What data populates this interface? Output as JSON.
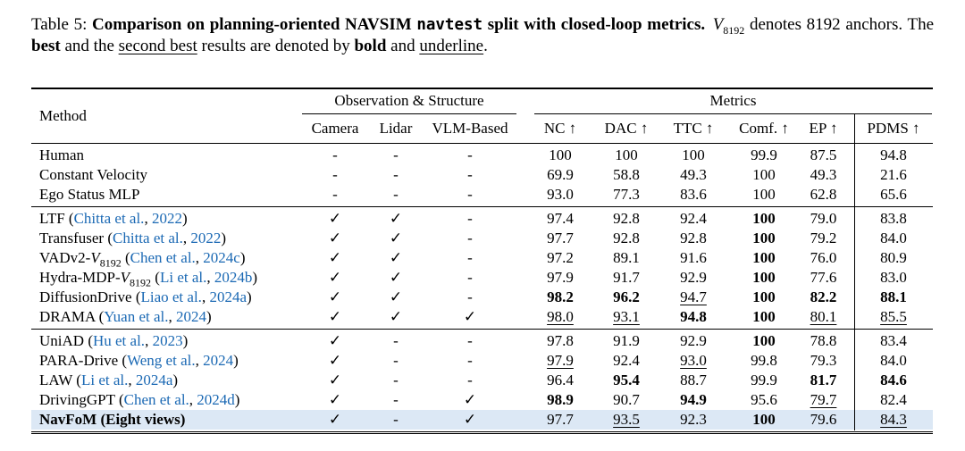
{
  "caption": {
    "label": "Table 5: ",
    "bold1": "Comparison on planning-oriented NAVSIM ",
    "mono": "navtest",
    "bold2": " split with closed-loop metrics.",
    "script_v": "V",
    "v_sub": "8192",
    "text2a": " denotes 8192 anchors. The ",
    "best_word": "best",
    "text2b": " and the ",
    "second_best_word": "second best",
    "text2c": " results are denoted by ",
    "bold_word": "bold",
    "text2d": " and ",
    "underline_word": "underline",
    "period": "."
  },
  "table": {
    "script_v": "V",
    "header": {
      "method": "Method",
      "obs_group": "Observation & Structure",
      "metrics_group": "Metrics",
      "cols": [
        "Camera",
        "Lidar",
        "VLM-Based"
      ],
      "metric_cols": [
        "NC ↑",
        "DAC ↑",
        "TTC ↑",
        "Comf. ↑",
        "EP ↑",
        "PDMS ↑"
      ]
    },
    "legend": {
      "check": "✓",
      "dash": "-"
    },
    "accent_colors": {
      "citation_blue": "#1b69b4",
      "highlight_row": "#dce8f5"
    },
    "groups": [
      {
        "rows": [
          {
            "pre": "Human",
            "flags": [
              "-",
              "-",
              "-"
            ],
            "m": [
              [
                "100",
                ""
              ],
              [
                "100",
                ""
              ],
              [
                "100",
                ""
              ],
              [
                "99.9",
                ""
              ],
              [
                "87.5",
                ""
              ],
              [
                "94.8",
                ""
              ]
            ]
          },
          {
            "pre": "Constant Velocity",
            "flags": [
              "-",
              "-",
              "-"
            ],
            "m": [
              [
                "69.9",
                ""
              ],
              [
                "58.8",
                ""
              ],
              [
                "49.3",
                ""
              ],
              [
                "100",
                ""
              ],
              [
                "49.3",
                ""
              ],
              [
                "21.6",
                ""
              ]
            ]
          },
          {
            "pre": "Ego Status MLP",
            "flags": [
              "-",
              "-",
              "-"
            ],
            "m": [
              [
                "93.0",
                ""
              ],
              [
                "77.3",
                ""
              ],
              [
                "83.6",
                ""
              ],
              [
                "100",
                ""
              ],
              [
                "62.8",
                ""
              ],
              [
                "65.6",
                ""
              ]
            ]
          }
        ]
      },
      {
        "rows": [
          {
            "pre": "LTF",
            "cite": {
              "a": "Chitta et al.",
              "y": "2022"
            },
            "flags": [
              "✓",
              "✓",
              "-"
            ],
            "m": [
              [
                "97.4",
                ""
              ],
              [
                "92.8",
                ""
              ],
              [
                "92.4",
                ""
              ],
              [
                "100",
                "b"
              ],
              [
                "79.0",
                ""
              ],
              [
                "83.8",
                ""
              ]
            ]
          },
          {
            "pre": "Transfuser",
            "cite": {
              "a": "Chitta et al.",
              "y": "2022"
            },
            "flags": [
              "✓",
              "✓",
              "-"
            ],
            "m": [
              [
                "97.7",
                ""
              ],
              [
                "92.8",
                ""
              ],
              [
                "92.8",
                ""
              ],
              [
                "100",
                "b"
              ],
              [
                "79.2",
                ""
              ],
              [
                "84.0",
                ""
              ]
            ]
          },
          {
            "pre": "VADv2-",
            "sv": true,
            "sub": "8192",
            "cite": {
              "a": "Chen et al.",
              "y": "2024c"
            },
            "flags": [
              "✓",
              "✓",
              "-"
            ],
            "m": [
              [
                "97.2",
                ""
              ],
              [
                "89.1",
                ""
              ],
              [
                "91.6",
                ""
              ],
              [
                "100",
                "b"
              ],
              [
                "76.0",
                ""
              ],
              [
                "80.9",
                ""
              ]
            ]
          },
          {
            "pre": "Hydra-MDP-",
            "sv": true,
            "sub": "8192",
            "cite": {
              "a": "Li et al.",
              "y": "2024b"
            },
            "flags": [
              "✓",
              "✓",
              "-"
            ],
            "m": [
              [
                "97.9",
                ""
              ],
              [
                "91.7",
                ""
              ],
              [
                "92.9",
                ""
              ],
              [
                "100",
                "b"
              ],
              [
                "77.6",
                ""
              ],
              [
                "83.0",
                ""
              ]
            ]
          },
          {
            "pre": "DiffusionDrive",
            "cite": {
              "a": "Liao et al.",
              "y": "2024a"
            },
            "flags": [
              "✓",
              "✓",
              "-"
            ],
            "m": [
              [
                "98.2",
                "b"
              ],
              [
                "96.2",
                "b"
              ],
              [
                "94.7",
                "u"
              ],
              [
                "100",
                "b"
              ],
              [
                "82.2",
                "b"
              ],
              [
                "88.1",
                "b"
              ]
            ]
          },
          {
            "pre": "DRAMA",
            "cite": {
              "a": "Yuan et al.",
              "y": "2024"
            },
            "flags": [
              "✓",
              "✓",
              "✓"
            ],
            "m": [
              [
                "98.0",
                "u"
              ],
              [
                "93.1",
                "u"
              ],
              [
                "94.8",
                "b"
              ],
              [
                "100",
                "b"
              ],
              [
                "80.1",
                "u"
              ],
              [
                "85.5",
                "u"
              ]
            ]
          }
        ]
      },
      {
        "rows": [
          {
            "pre": "UniAD",
            "cite": {
              "a": "Hu et al.",
              "y": "2023"
            },
            "flags": [
              "✓",
              "-",
              "-"
            ],
            "m": [
              [
                "97.8",
                ""
              ],
              [
                "91.9",
                ""
              ],
              [
                "92.9",
                ""
              ],
              [
                "100",
                "b"
              ],
              [
                "78.8",
                ""
              ],
              [
                "83.4",
                ""
              ]
            ]
          },
          {
            "pre": "PARA-Drive",
            "cite": {
              "a": "Weng et al.",
              "y": "2024"
            },
            "flags": [
              "✓",
              "-",
              "-"
            ],
            "m": [
              [
                "97.9",
                "u"
              ],
              [
                "92.4",
                ""
              ],
              [
                "93.0",
                "u"
              ],
              [
                "99.8",
                ""
              ],
              [
                "79.3",
                ""
              ],
              [
                "84.0",
                ""
              ]
            ]
          },
          {
            "pre": "LAW",
            "cite": {
              "a": "Li et al.",
              "y": "2024a"
            },
            "flags": [
              "✓",
              "-",
              "-"
            ],
            "m": [
              [
                "96.4",
                ""
              ],
              [
                "95.4",
                "b"
              ],
              [
                "88.7",
                ""
              ],
              [
                "99.9",
                ""
              ],
              [
                "81.7",
                "b"
              ],
              [
                "84.6",
                "b"
              ]
            ]
          },
          {
            "pre": "DrivingGPT",
            "cite": {
              "a": "Chen et al.",
              "y": "2024d"
            },
            "flags": [
              "✓",
              "-",
              "✓"
            ],
            "m": [
              [
                "98.9",
                "b"
              ],
              [
                "90.7",
                ""
              ],
              [
                "94.9",
                "b"
              ],
              [
                "95.6",
                ""
              ],
              [
                "79.7",
                "u"
              ],
              [
                "82.4",
                ""
              ]
            ]
          },
          {
            "pre": "NavFoM (Eight views)",
            "nb": true,
            "hl": true,
            "flags": [
              "✓",
              "-",
              "✓"
            ],
            "m": [
              [
                "97.7",
                ""
              ],
              [
                "93.5",
                "u"
              ],
              [
                "92.3",
                ""
              ],
              [
                "100",
                "b"
              ],
              [
                "79.6",
                ""
              ],
              [
                "84.3",
                "u"
              ]
            ]
          }
        ]
      }
    ]
  }
}
